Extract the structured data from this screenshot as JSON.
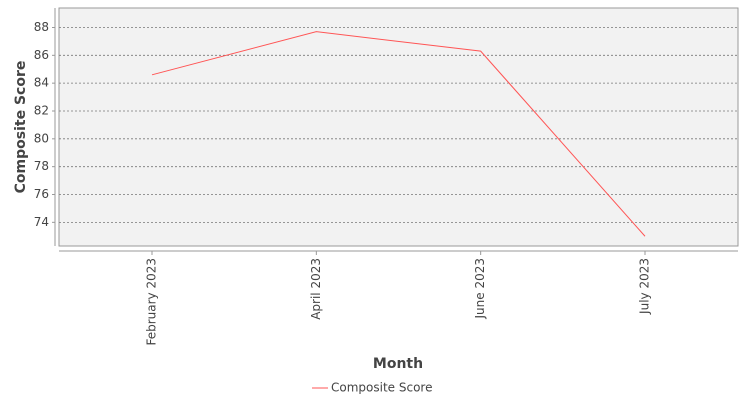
{
  "chart_data": {
    "type": "line",
    "x_label": "Month",
    "y_label": "Composite Score",
    "categories": [
      "February 2023",
      "April 2023",
      "June 2023",
      "July 2023"
    ],
    "series": [
      {
        "name": "Composite Score",
        "color": "#ff5555",
        "values": [
          84.6,
          87.7,
          86.3,
          73.0
        ]
      }
    ],
    "ylim": [
      72.3,
      89.4
    ],
    "yticks": [
      74,
      76,
      78,
      80,
      82,
      84,
      86,
      88
    ],
    "grid": true,
    "legend": "bottom"
  }
}
